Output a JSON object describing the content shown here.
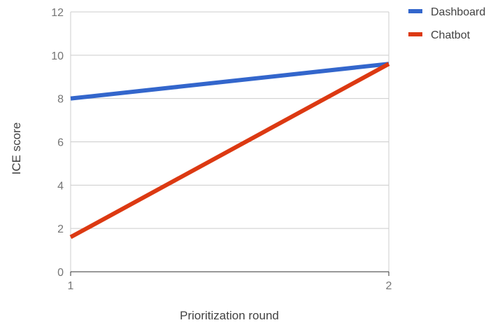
{
  "chart_data": {
    "type": "line",
    "title": "",
    "xlabel": "Prioritization round",
    "ylabel": "ICE score",
    "x": [
      1,
      2
    ],
    "x_tick_labels": [
      "1",
      "2"
    ],
    "y_tick_labels": [
      "0",
      "2",
      "4",
      "6",
      "8",
      "10",
      "12"
    ],
    "ylim": [
      0,
      12
    ],
    "y_ticks": [
      0,
      2,
      4,
      6,
      8,
      10,
      12
    ],
    "grid": true,
    "legend_position": "top-right",
    "series": [
      {
        "name": "Dashboard",
        "values": [
          8.0,
          9.6
        ],
        "color": "#3366cc"
      },
      {
        "name": "Chatbot",
        "values": [
          1.6,
          9.6
        ],
        "color": "#dc3912"
      }
    ]
  }
}
